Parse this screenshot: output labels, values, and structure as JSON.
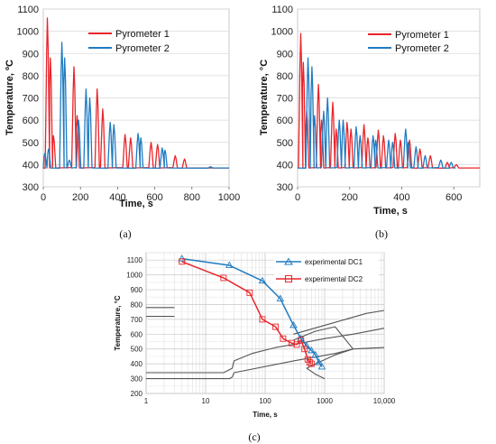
{
  "chart_data": [
    {
      "id": "a",
      "type": "line",
      "caption": "(a)",
      "xlabel": "Time, s",
      "ylabel": "Temperature, ºC",
      "xlim": [
        0,
        1000
      ],
      "ylim": [
        300,
        1100
      ],
      "xticks": [
        "0",
        "200",
        "400",
        "600",
        "800",
        "1000"
      ],
      "yticks": [
        "300",
        "400",
        "500",
        "600",
        "700",
        "800",
        "900",
        "1000",
        "1100"
      ],
      "legend_position": "top-center",
      "baseline": 385,
      "series": [
        {
          "name": "Pyrometer 1",
          "color": "#e8252b",
          "peaks": [
            [
              22,
              1060
            ],
            [
              38,
              880
            ],
            [
              55,
              530
            ],
            [
              165,
              840
            ],
            [
              182,
              620
            ],
            [
              290,
              740
            ],
            [
              320,
              650
            ],
            [
              440,
              535
            ],
            [
              470,
              520
            ],
            [
              580,
              500
            ],
            [
              615,
              490
            ],
            [
              710,
              440
            ],
            [
              760,
              425
            ]
          ]
        },
        {
          "name": "Pyrometer 2",
          "color": "#1f7bc1",
          "peaks": [
            [
              8,
              450
            ],
            [
              28,
              470
            ],
            [
              100,
              950
            ],
            [
              115,
              880
            ],
            [
              140,
              420
            ],
            [
              190,
              600
            ],
            [
              230,
              740
            ],
            [
              250,
              700
            ],
            [
              360,
              590
            ],
            [
              380,
              580
            ],
            [
              510,
              540
            ],
            [
              525,
              520
            ],
            [
              640,
              475
            ],
            [
              655,
              465
            ],
            [
              900,
              390
            ]
          ]
        }
      ]
    },
    {
      "id": "b",
      "type": "line",
      "caption": "(b)",
      "xlabel": "Time, s",
      "ylabel": "Temperature, °C",
      "xlim": [
        0,
        700
      ],
      "ylim": [
        300,
        1100
      ],
      "xticks": [
        "0",
        "200",
        "400",
        "600"
      ],
      "yticks": [
        "300",
        "400",
        "500",
        "600",
        "700",
        "800",
        "900",
        "1000",
        "1100"
      ],
      "legend_position": "top-right",
      "baseline": 385,
      "series": [
        {
          "name": "Pyrometer 1",
          "color": "#e8252b",
          "peaks": [
            [
              12,
              990
            ],
            [
              22,
              860
            ],
            [
              35,
              640
            ],
            [
              80,
              760
            ],
            [
              92,
              600
            ],
            [
              135,
              680
            ],
            [
              148,
              560
            ],
            [
              190,
              590
            ],
            [
              205,
              560
            ],
            [
              255,
              580
            ],
            [
              270,
              520
            ],
            [
              310,
              555
            ],
            [
              330,
              530
            ],
            [
              375,
              540
            ],
            [
              395,
              510
            ],
            [
              430,
              510
            ],
            [
              470,
              470
            ],
            [
              510,
              440
            ],
            [
              575,
              410
            ],
            [
              610,
              400
            ]
          ]
        },
        {
          "name": "Pyrometer 2",
          "color": "#1f7bc1",
          "peaks": [
            [
              40,
              880
            ],
            [
              55,
              840
            ],
            [
              65,
              620
            ],
            [
              100,
              640
            ],
            [
              115,
              700
            ],
            [
              160,
              600
            ],
            [
              175,
              600
            ],
            [
              225,
              570
            ],
            [
              240,
              530
            ],
            [
              290,
              530
            ],
            [
              300,
              510
            ],
            [
              350,
              510
            ],
            [
              365,
              500
            ],
            [
              415,
              560
            ],
            [
              425,
              500
            ],
            [
              455,
              480
            ],
            [
              490,
              440
            ],
            [
              550,
              420
            ],
            [
              590,
              410
            ]
          ]
        }
      ]
    },
    {
      "id": "c",
      "type": "line",
      "caption": "(c)",
      "xlabel": "Time, s",
      "ylabel": "Temperature, °C",
      "xscale": "log",
      "xlim": [
        1,
        10000
      ],
      "ylim": [
        200,
        1150
      ],
      "xticks": [
        "1",
        "10",
        "100",
        "1000",
        "10,000"
      ],
      "yticks": [
        "200",
        "300",
        "400",
        "500",
        "600",
        "700",
        "800",
        "900",
        "1000",
        "1100"
      ],
      "legend_position": "top-right",
      "series": [
        {
          "name": "experimental DC1",
          "color": "#1f7bc1",
          "marker": "triangle",
          "x": [
            4,
            25,
            90,
            180,
            300,
            400,
            500,
            600,
            700,
            800,
            900
          ],
          "y": [
            1110,
            1065,
            960,
            840,
            660,
            570,
            520,
            490,
            460,
            410,
            380
          ]
        },
        {
          "name": "experimental DC2",
          "color": "#e8252b",
          "marker": "square",
          "x": [
            4,
            20,
            55,
            90,
            150,
            200,
            280,
            340,
            400,
            460,
            520,
            560,
            600
          ],
          "y": [
            1090,
            980,
            880,
            700,
            650,
            570,
            540,
            530,
            560,
            500,
            430,
            410,
            400
          ]
        },
        {
          "name": "",
          "color": "#555555",
          "marker": "none",
          "x": [
            1,
            3
          ],
          "y": [
            780,
            780
          ]
        },
        {
          "name": "",
          "color": "#555555",
          "marker": "none",
          "x": [
            1,
            3
          ],
          "y": [
            720,
            720
          ]
        },
        {
          "name": "",
          "color": "#555555",
          "marker": "none",
          "x": [
            1,
            20,
            28,
            30,
            60,
            150,
            400,
            1000,
            3000,
            10000
          ],
          "y": [
            340,
            340,
            370,
            420,
            470,
            510,
            540,
            570,
            600,
            640
          ]
        },
        {
          "name": "",
          "color": "#555555",
          "marker": "none",
          "x": [
            1,
            25,
            28,
            30,
            300,
            1500,
            3000,
            10000
          ],
          "y": [
            300,
            300,
            310,
            340,
            420,
            470,
            500,
            510
          ]
        },
        {
          "name": "",
          "color": "#555555",
          "marker": "none",
          "x": [
            300,
            700,
            1500,
            3000,
            1500,
            700,
            500,
            700,
            1000
          ],
          "y": [
            560,
            620,
            650,
            500,
            460,
            400,
            370,
            330,
            300
          ]
        },
        {
          "name": "",
          "color": "#555555",
          "marker": "none",
          "x": [
            300,
            1500,
            5000,
            10000
          ],
          "y": [
            600,
            680,
            740,
            760
          ]
        }
      ]
    }
  ]
}
